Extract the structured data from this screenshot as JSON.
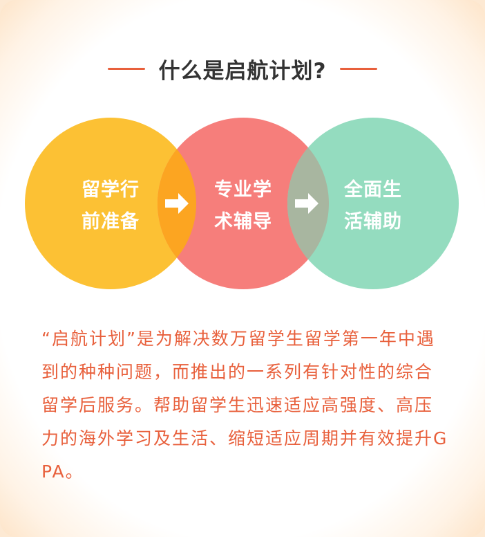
{
  "heading": {
    "title": "什么是启航计划?"
  },
  "circles": [
    {
      "line1": "留学行",
      "line2": "前准备",
      "color": "#fcc134"
    },
    {
      "line1": "专业学",
      "line2": "术辅导",
      "color": "#f67e7b"
    },
    {
      "line1": "全面生",
      "line2": "活辅助",
      "color": "#94dcbf"
    }
  ],
  "overlap_colors": [
    "#fca521",
    "#a8b6a0"
  ],
  "arrow_icon": "right-arrow-icon",
  "description": "“启航计划”是为解决数万留学生留学第一年中遇到的种种问题，而推出的一系列有针对性的综合留学后服务。帮助留学生迅速适应高强度、高压力的海外学习及生活、缩短适应周期并有效提升GPA。",
  "colors": {
    "accent": "#e8603c",
    "heading_text": "#333333",
    "background": "#fde9d3"
  }
}
